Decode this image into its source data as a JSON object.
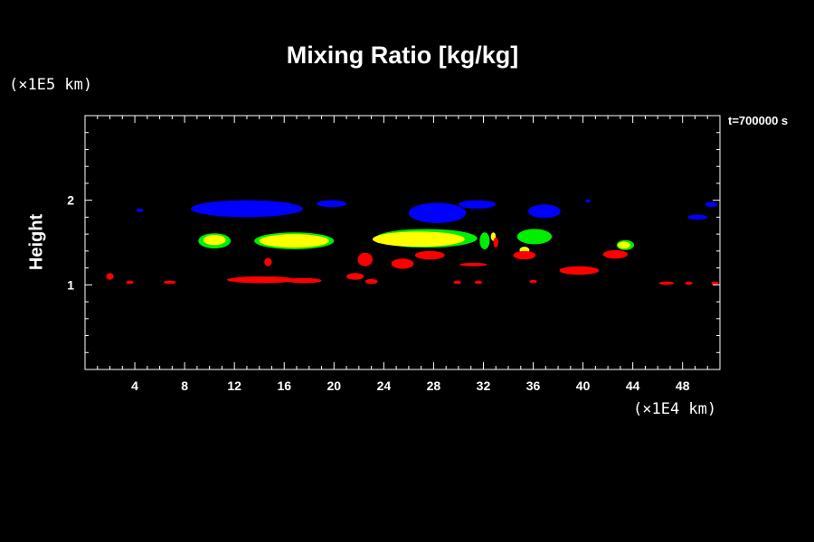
{
  "chart_data": {
    "type": "contour-fill",
    "title": "Mixing Ratio [kg/kg]",
    "ylabel": "Height",
    "y_unit": "(×1E5 km)",
    "x_unit": "(×1E4 km)",
    "time_label": "t=700000 s",
    "xlim": [
      0,
      51
    ],
    "ylim": [
      0,
      3
    ],
    "x_ticks": [
      4,
      8,
      12,
      16,
      20,
      24,
      28,
      32,
      36,
      40,
      44,
      48
    ],
    "y_ticks": [
      1,
      2
    ],
    "grid": false,
    "colors": {
      "blue": "#0000ff",
      "green": "#00ee00",
      "yellow": "#ffff00",
      "red": "#ff0000"
    },
    "regions": [
      {
        "color": "blue",
        "cx": 13,
        "cy": 1.9,
        "rx": 4.5,
        "ry": 0.1
      },
      {
        "color": "blue",
        "cx": 19.8,
        "cy": 1.96,
        "rx": 1.2,
        "ry": 0.04
      },
      {
        "color": "blue",
        "cx": 28.3,
        "cy": 1.85,
        "rx": 2.3,
        "ry": 0.12
      },
      {
        "color": "blue",
        "cx": 31.5,
        "cy": 1.95,
        "rx": 1.5,
        "ry": 0.05
      },
      {
        "color": "blue",
        "cx": 36.9,
        "cy": 1.87,
        "rx": 1.3,
        "ry": 0.08
      },
      {
        "color": "blue",
        "cx": 49.2,
        "cy": 1.8,
        "rx": 0.8,
        "ry": 0.03
      },
      {
        "color": "blue",
        "cx": 50.3,
        "cy": 1.95,
        "rx": 0.5,
        "ry": 0.03
      },
      {
        "color": "blue",
        "cx": 4.4,
        "cy": 1.88,
        "rx": 0.3,
        "ry": 0.02
      },
      {
        "color": "blue",
        "cx": 40.4,
        "cy": 1.99,
        "rx": 0.2,
        "ry": 0.02
      },
      {
        "color": "green",
        "cx": 10.4,
        "cy": 1.52,
        "rx": 1.3,
        "ry": 0.09
      },
      {
        "color": "green",
        "cx": 16.8,
        "cy": 1.52,
        "rx": 3.2,
        "ry": 0.1
      },
      {
        "color": "green",
        "cx": 27.4,
        "cy": 1.55,
        "rx": 4.1,
        "ry": 0.11
      },
      {
        "color": "green",
        "cx": 32.1,
        "cy": 1.52,
        "rx": 0.4,
        "ry": 0.1
      },
      {
        "color": "green",
        "cx": 36.1,
        "cy": 1.57,
        "rx": 1.4,
        "ry": 0.09
      },
      {
        "color": "green",
        "cx": 43.4,
        "cy": 1.47,
        "rx": 0.7,
        "ry": 0.06
      },
      {
        "color": "yellow",
        "cx": 10.4,
        "cy": 1.53,
        "rx": 0.9,
        "ry": 0.06
      },
      {
        "color": "yellow",
        "cx": 16.8,
        "cy": 1.52,
        "rx": 2.8,
        "ry": 0.08
      },
      {
        "color": "yellow",
        "cx": 26.8,
        "cy": 1.54,
        "rx": 3.7,
        "ry": 0.09
      },
      {
        "color": "yellow",
        "cx": 35.3,
        "cy": 1.41,
        "rx": 0.4,
        "ry": 0.04
      },
      {
        "color": "yellow",
        "cx": 43.3,
        "cy": 1.47,
        "rx": 0.5,
        "ry": 0.04
      },
      {
        "color": "yellow",
        "cx": 32.8,
        "cy": 1.57,
        "rx": 0.2,
        "ry": 0.05
      },
      {
        "color": "red",
        "cx": 14.2,
        "cy": 1.06,
        "rx": 2.8,
        "ry": 0.04
      },
      {
        "color": "red",
        "cx": 17.6,
        "cy": 1.05,
        "rx": 1.4,
        "ry": 0.03
      },
      {
        "color": "red",
        "cx": 22.5,
        "cy": 1.3,
        "rx": 0.6,
        "ry": 0.08
      },
      {
        "color": "red",
        "cx": 21.7,
        "cy": 1.1,
        "rx": 0.7,
        "ry": 0.04
      },
      {
        "color": "red",
        "cx": 23.0,
        "cy": 1.04,
        "rx": 0.5,
        "ry": 0.03
      },
      {
        "color": "red",
        "cx": 25.5,
        "cy": 1.25,
        "rx": 0.9,
        "ry": 0.06
      },
      {
        "color": "red",
        "cx": 27.7,
        "cy": 1.35,
        "rx": 1.2,
        "ry": 0.05
      },
      {
        "color": "red",
        "cx": 35.3,
        "cy": 1.35,
        "rx": 0.9,
        "ry": 0.05
      },
      {
        "color": "red",
        "cx": 39.7,
        "cy": 1.17,
        "rx": 1.6,
        "ry": 0.05
      },
      {
        "color": "red",
        "cx": 42.6,
        "cy": 1.36,
        "rx": 1.0,
        "ry": 0.05
      },
      {
        "color": "red",
        "cx": 14.7,
        "cy": 1.27,
        "rx": 0.3,
        "ry": 0.05
      },
      {
        "color": "red",
        "cx": 31.2,
        "cy": 1.24,
        "rx": 1.1,
        "ry": 0.02
      },
      {
        "color": "red",
        "cx": 2.0,
        "cy": 1.1,
        "rx": 0.3,
        "ry": 0.04
      },
      {
        "color": "red",
        "cx": 3.6,
        "cy": 1.03,
        "rx": 0.3,
        "ry": 0.02
      },
      {
        "color": "red",
        "cx": 6.8,
        "cy": 1.03,
        "rx": 0.5,
        "ry": 0.02
      },
      {
        "color": "red",
        "cx": 29.9,
        "cy": 1.03,
        "rx": 0.3,
        "ry": 0.02
      },
      {
        "color": "red",
        "cx": 31.6,
        "cy": 1.03,
        "rx": 0.3,
        "ry": 0.02
      },
      {
        "color": "red",
        "cx": 36.0,
        "cy": 1.04,
        "rx": 0.3,
        "ry": 0.02
      },
      {
        "color": "red",
        "cx": 46.7,
        "cy": 1.02,
        "rx": 0.6,
        "ry": 0.02
      },
      {
        "color": "red",
        "cx": 48.5,
        "cy": 1.02,
        "rx": 0.3,
        "ry": 0.02
      },
      {
        "color": "red",
        "cx": 50.6,
        "cy": 1.02,
        "rx": 0.3,
        "ry": 0.02
      },
      {
        "color": "red",
        "cx": 33.0,
        "cy": 1.5,
        "rx": 0.2,
        "ry": 0.06
      }
    ]
  }
}
